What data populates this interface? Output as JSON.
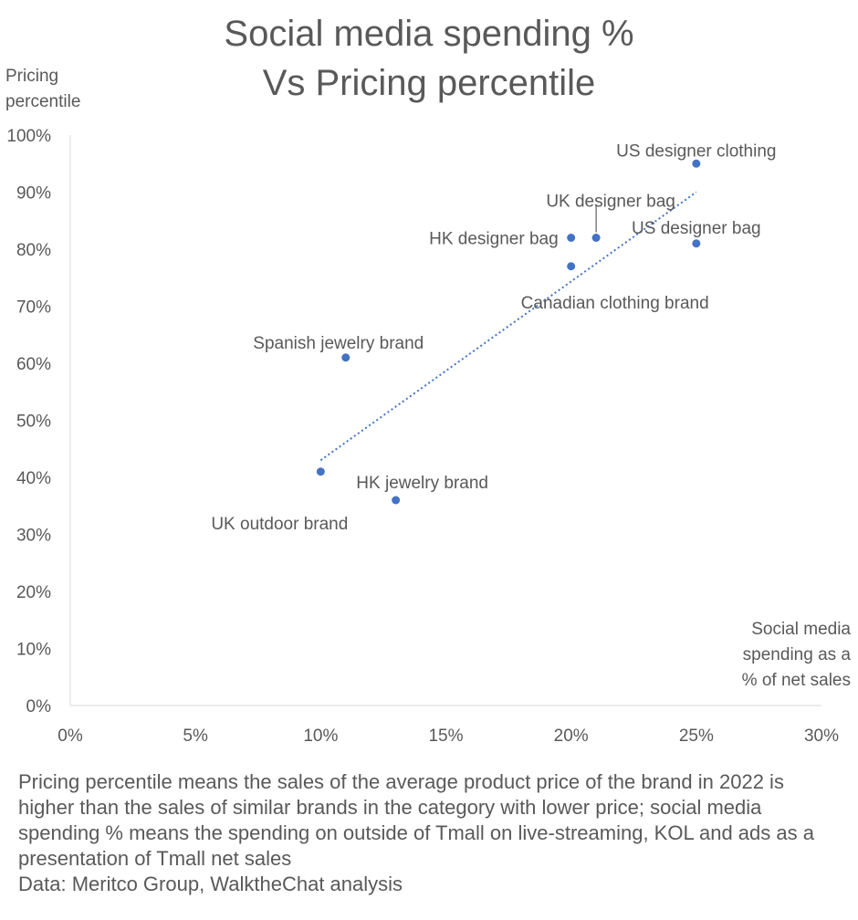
{
  "chart_data": {
    "type": "scatter",
    "title_lines": [
      "Social media spending %",
      "Vs Pricing percentile"
    ],
    "ylabel_lines": [
      "Pricing",
      "percentile"
    ],
    "xlabel_lines": [
      "Social media",
      "spending as a",
      "% of net sales"
    ],
    "xlim": [
      0,
      0.3
    ],
    "ylim": [
      0,
      1.0
    ],
    "x_ticks": [
      {
        "value": 0,
        "label": "0%"
      },
      {
        "value": 0.05,
        "label": "5%"
      },
      {
        "value": 0.1,
        "label": "10%"
      },
      {
        "value": 0.15,
        "label": "15%"
      },
      {
        "value": 0.2,
        "label": "20%"
      },
      {
        "value": 0.25,
        "label": "25%"
      },
      {
        "value": 0.3,
        "label": "30%"
      }
    ],
    "y_ticks": [
      {
        "value": 0,
        "label": "0%"
      },
      {
        "value": 0.1,
        "label": "10%"
      },
      {
        "value": 0.2,
        "label": "20%"
      },
      {
        "value": 0.3,
        "label": "30%"
      },
      {
        "value": 0.4,
        "label": "40%"
      },
      {
        "value": 0.5,
        "label": "50%"
      },
      {
        "value": 0.6,
        "label": "60%"
      },
      {
        "value": 0.7,
        "label": "70%"
      },
      {
        "value": 0.8,
        "label": "80%"
      },
      {
        "value": 0.9,
        "label": "90%"
      },
      {
        "value": 1.0,
        "label": "100%"
      }
    ],
    "grid": false,
    "point_color": "#4472C4",
    "points": [
      {
        "label": "US designer clothing",
        "x": 0.25,
        "y": 0.95
      },
      {
        "label": "UK designer bag",
        "x": 0.21,
        "y": 0.82
      },
      {
        "label": "HK designer bag",
        "x": 0.2,
        "y": 0.82
      },
      {
        "label": "US designer bag",
        "x": 0.25,
        "y": 0.81
      },
      {
        "label": "Canadian clothing brand",
        "x": 0.2,
        "y": 0.77
      },
      {
        "label": "Spanish jewelry brand",
        "x": 0.11,
        "y": 0.61
      },
      {
        "label": "UK outdoor brand",
        "x": 0.1,
        "y": 0.41
      },
      {
        "label": "HK jewelry brand",
        "x": 0.13,
        "y": 0.36
      }
    ],
    "trendline": {
      "style": "dotted",
      "color": "#4472C4",
      "x1": 0.1,
      "y1": 0.43,
      "x2": 0.25,
      "y2": 0.9
    }
  },
  "footnote": {
    "text": "Pricing percentile means the sales of the average product price of the brand in 2022 is higher than the sales of similar brands in the category with lower price; social media spending % means the spending on outside of Tmall on live-streaming, KOL and ads as a presentation of Tmall net sales",
    "source": "Data:  Meritco Group, WalktheChat analysis"
  }
}
